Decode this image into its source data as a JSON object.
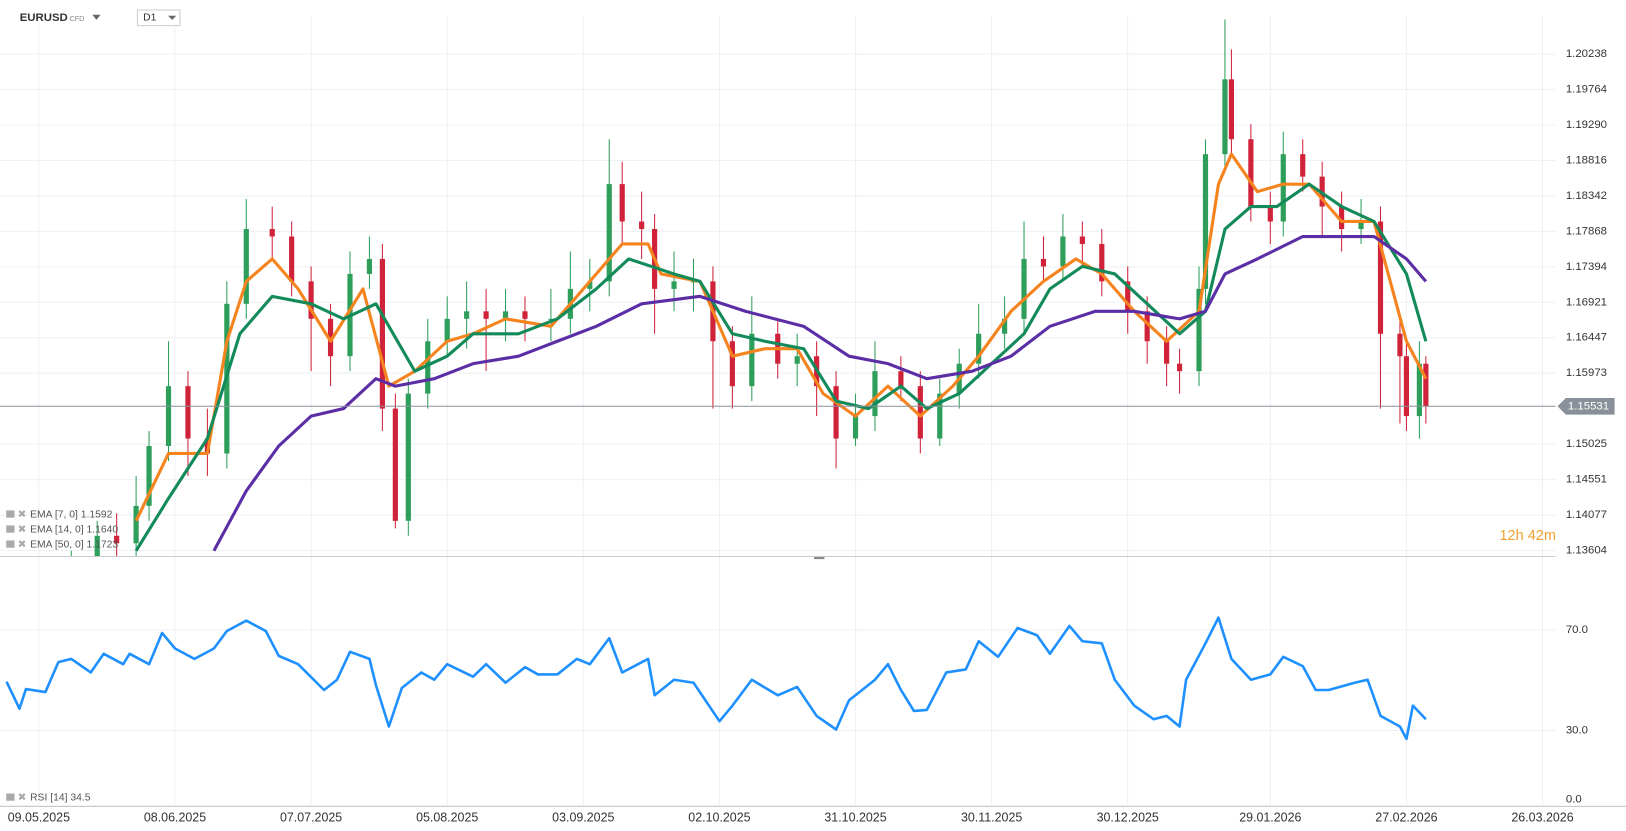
{
  "header": {
    "symbol": "EURUSD",
    "market": "CFD",
    "timeframe": "D1"
  },
  "chart_data": [
    {
      "type": "candlestick",
      "up_color": "#2e9e5b",
      "down_color": "#d0233a",
      "grid": true,
      "xlim": [
        -6,
        234
      ],
      "ylim": [
        1.1353,
        1.2075
      ],
      "yticks": [
        1.20238,
        1.19764,
        {
          "value": 1.1929,
          "label": "1.19290"
        },
        1.18816,
        1.18342,
        1.17868,
        1.17394,
        1.16921,
        1.16447,
        1.15973,
        1.15025,
        1.14551,
        1.14077,
        1.13604
      ],
      "current_price": 1.15531,
      "countdown": "12h 42m",
      "x": [
        5,
        9,
        12,
        15,
        17,
        20,
        23,
        26,
        29,
        32,
        36,
        39,
        42,
        45,
        48,
        51,
        53,
        55,
        57,
        60,
        63,
        66,
        69,
        72,
        75,
        79,
        82,
        85,
        88,
        90,
        93,
        95,
        98,
        101,
        104,
        107,
        110,
        114,
        117,
        120,
        123,
        126,
        129,
        133,
        136,
        139,
        142,
        145,
        149,
        152,
        155,
        158,
        161,
        164,
        168,
        171,
        174,
        176,
        179,
        180,
        183,
        184,
        187,
        190,
        192,
        195,
        198,
        201,
        204,
        207,
        210,
        211,
        213,
        214
      ],
      "open": [
        1.131,
        1.134,
        1.138,
        1.137,
        1.142,
        1.15,
        1.158,
        1.151,
        1.149,
        1.169,
        1.179,
        1.178,
        1.172,
        1.167,
        1.162,
        1.173,
        1.175,
        1.155,
        1.14,
        1.157,
        1.164,
        1.167,
        1.168,
        1.167,
        1.168,
        1.167,
        1.167,
        1.171,
        1.172,
        1.185,
        1.18,
        1.179,
        1.171,
        1.172,
        1.172,
        1.164,
        1.158,
        1.165,
        1.161,
        1.162,
        1.158,
        1.151,
        1.154,
        1.16,
        1.158,
        1.151,
        1.157,
        1.161,
        1.165,
        1.167,
        1.175,
        1.174,
        1.178,
        1.177,
        1.172,
        1.168,
        1.164,
        1.161,
        1.16,
        1.171,
        1.189,
        1.199,
        1.191,
        1.182,
        1.18,
        1.189,
        1.186,
        1.182,
        1.179,
        1.18,
        1.165,
        1.162,
        1.154,
        1.161
      ],
      "high": [
        1.136,
        1.14,
        1.141,
        1.146,
        1.152,
        1.164,
        1.16,
        1.155,
        1.172,
        1.183,
        1.182,
        1.18,
        1.174,
        1.169,
        1.176,
        1.178,
        1.177,
        1.157,
        1.159,
        1.167,
        1.17,
        1.172,
        1.171,
        1.171,
        1.17,
        1.171,
        1.176,
        1.175,
        1.191,
        1.188,
        1.184,
        1.181,
        1.176,
        1.175,
        1.174,
        1.166,
        1.17,
        1.167,
        1.165,
        1.164,
        1.16,
        1.157,
        1.164,
        1.162,
        1.16,
        1.159,
        1.163,
        1.169,
        1.17,
        1.18,
        1.178,
        1.181,
        1.18,
        1.179,
        1.174,
        1.17,
        1.166,
        1.163,
        1.174,
        1.191,
        1.207,
        1.203,
        1.193,
        1.184,
        1.192,
        1.191,
        1.188,
        1.184,
        1.183,
        1.182,
        1.167,
        1.164,
        1.164,
        1.162
      ],
      "low": [
        1.129,
        1.132,
        1.135,
        1.135,
        1.14,
        1.148,
        1.146,
        1.146,
        1.147,
        1.167,
        1.175,
        1.17,
        1.16,
        1.158,
        1.16,
        1.171,
        1.152,
        1.139,
        1.138,
        1.155,
        1.162,
        1.163,
        1.16,
        1.164,
        1.164,
        1.164,
        1.165,
        1.168,
        1.17,
        1.177,
        1.175,
        1.165,
        1.168,
        1.168,
        1.155,
        1.155,
        1.156,
        1.159,
        1.158,
        1.154,
        1.147,
        1.15,
        1.152,
        1.156,
        1.149,
        1.15,
        1.155,
        1.159,
        1.163,
        1.165,
        1.172,
        1.172,
        1.174,
        1.17,
        1.165,
        1.161,
        1.158,
        1.157,
        1.158,
        1.169,
        1.187,
        1.189,
        1.18,
        1.177,
        1.178,
        1.184,
        1.178,
        1.176,
        1.177,
        1.155,
        1.153,
        1.152,
        1.151,
        1.153
      ],
      "close": [
        1.134,
        1.138,
        1.137,
        1.142,
        1.15,
        1.158,
        1.151,
        1.149,
        1.169,
        1.179,
        1.178,
        1.172,
        1.167,
        1.162,
        1.173,
        1.175,
        1.155,
        1.14,
        1.157,
        1.164,
        1.167,
        1.168,
        1.167,
        1.168,
        1.167,
        1.167,
        1.171,
        1.172,
        1.185,
        1.18,
        1.179,
        1.171,
        1.172,
        1.172,
        1.164,
        1.158,
        1.165,
        1.161,
        1.162,
        1.158,
        1.151,
        1.154,
        1.16,
        1.158,
        1.151,
        1.157,
        1.161,
        1.165,
        1.167,
        1.175,
        1.174,
        1.178,
        1.177,
        1.172,
        1.168,
        1.164,
        1.161,
        1.16,
        1.171,
        1.189,
        1.199,
        1.191,
        1.182,
        1.18,
        1.189,
        1.186,
        1.182,
        1.179,
        1.18,
        1.165,
        1.162,
        1.154,
        1.161,
        1.1553
      ],
      "overlays": [
        {
          "name": "EMA [7, 0] 1.1592",
          "color": "#f5841f",
          "x": [
            15,
            20,
            26,
            29,
            32,
            36,
            40,
            45,
            50,
            54,
            58,
            63,
            67,
            72,
            79,
            83,
            90,
            94,
            96,
            102,
            107,
            112,
            117,
            121,
            126,
            131,
            136,
            141,
            145,
            150,
            155,
            160,
            164,
            169,
            174,
            179,
            182,
            184,
            188,
            192,
            196,
            201,
            206,
            211,
            214
          ],
          "values": [
            1.14,
            1.149,
            1.149,
            1.164,
            1.172,
            1.175,
            1.171,
            1.164,
            1.171,
            1.158,
            1.16,
            1.164,
            1.165,
            1.167,
            1.166,
            1.17,
            1.177,
            1.177,
            1.173,
            1.172,
            1.162,
            1.163,
            1.163,
            1.157,
            1.154,
            1.158,
            1.154,
            1.158,
            1.162,
            1.168,
            1.172,
            1.175,
            1.173,
            1.168,
            1.164,
            1.168,
            1.185,
            1.189,
            1.184,
            1.185,
            1.185,
            1.18,
            1.18,
            1.164,
            1.159
          ]
        },
        {
          "name": "EMA [14, 0] 1.1640",
          "color": "#138a5a",
          "x": [
            15,
            20,
            26,
            31,
            36,
            42,
            47,
            52,
            58,
            63,
            67,
            74,
            80,
            86,
            91,
            98,
            102,
            107,
            112,
            118,
            123,
            128,
            133,
            137,
            142,
            147,
            152,
            156,
            161,
            166,
            171,
            176,
            180,
            183,
            187,
            191,
            196,
            201,
            206,
            211,
            214
          ],
          "values": [
            1.136,
            1.143,
            1.151,
            1.165,
            1.17,
            1.169,
            1.167,
            1.169,
            1.16,
            1.162,
            1.165,
            1.165,
            1.167,
            1.171,
            1.175,
            1.173,
            1.172,
            1.165,
            1.164,
            1.163,
            1.156,
            1.155,
            1.158,
            1.155,
            1.157,
            1.161,
            1.165,
            1.171,
            1.174,
            1.173,
            1.169,
            1.165,
            1.168,
            1.179,
            1.182,
            1.182,
            1.185,
            1.182,
            1.18,
            1.173,
            1.164
          ]
        },
        {
          "name": "EMA [50, 0] 1.1723",
          "color": "#5b2ea6",
          "x": [
            27,
            32,
            37,
            42,
            47,
            52,
            55,
            61,
            67,
            74,
            80,
            86,
            93,
            102,
            109,
            118,
            125,
            131,
            137,
            144,
            150,
            156,
            163,
            169,
            176,
            180,
            183,
            188,
            195,
            199,
            206,
            211,
            214
          ],
          "values": [
            1.136,
            1.144,
            1.15,
            1.154,
            1.155,
            1.159,
            1.158,
            1.159,
            1.161,
            1.162,
            1.164,
            1.166,
            1.169,
            1.17,
            1.168,
            1.166,
            1.162,
            1.161,
            1.159,
            1.16,
            1.162,
            1.166,
            1.168,
            1.168,
            1.167,
            1.168,
            1.173,
            1.175,
            1.178,
            1.178,
            1.178,
            1.175,
            1.172
          ]
        }
      ]
    },
    {
      "type": "line",
      "xlim": [
        -6,
        234
      ],
      "ylim": [
        0,
        99
      ],
      "yticks": [
        {
          "value": 70,
          "label": "70.0"
        },
        {
          "value": 30,
          "label": "30.0"
        },
        {
          "value": 0,
          "label": "0.0"
        }
      ],
      "xticks": [
        {
          "value": 0,
          "label": "09.05.2025"
        },
        {
          "value": 21,
          "label": "08.06.2025"
        },
        {
          "value": 42,
          "label": "07.07.2025"
        },
        {
          "value": 63,
          "label": "05.08.2025"
        },
        {
          "value": 84,
          "label": "03.09.2025"
        },
        {
          "value": 105,
          "label": "02.10.2025"
        },
        {
          "value": 126,
          "label": "31.10.2025"
        },
        {
          "value": 147,
          "label": "30.11.2025"
        },
        {
          "value": 168,
          "label": "30.12.2025"
        },
        {
          "value": 190,
          "label": "29.01.2026"
        },
        {
          "value": 211,
          "label": "27.02.2026"
        },
        {
          "value": 232,
          "label": "26.03.2026"
        }
      ],
      "series": [
        {
          "name": "RSI [14] 34.5",
          "color": "#1e90ff",
          "x": [
            -5,
            -3,
            -2,
            1,
            3,
            5,
            8,
            10,
            13,
            14,
            17,
            19,
            21,
            24,
            27,
            29,
            32,
            35,
            37,
            40,
            44,
            46,
            48,
            51,
            52,
            54,
            56,
            59,
            61,
            63,
            67,
            69,
            72,
            75,
            77,
            80,
            83,
            85,
            88,
            90,
            94,
            95,
            98,
            101,
            105,
            107,
            110,
            114,
            117,
            120,
            123,
            125,
            129,
            131,
            133,
            135,
            137,
            140,
            143,
            145,
            148,
            151,
            154,
            156,
            159,
            161,
            164,
            166,
            169,
            172,
            174,
            176,
            177,
            180,
            182,
            184,
            187,
            190,
            192,
            195,
            197,
            199,
            203,
            205,
            207,
            210,
            211,
            212,
            214
          ],
          "values": [
            49.4,
            38.7,
            46.5,
            45.3,
            57.2,
            58.5,
            53.1,
            60.5,
            56.4,
            60.5,
            56.4,
            68.8,
            62.6,
            58.5,
            62.6,
            69.6,
            73.7,
            69.6,
            59.7,
            56.4,
            46.1,
            50.2,
            61.3,
            58.5,
            48.1,
            31.6,
            46.9,
            53.1,
            50.2,
            56.4,
            51.4,
            56.4,
            49.0,
            55.2,
            52.3,
            52.3,
            58.5,
            56.4,
            66.7,
            53.1,
            58.5,
            44.0,
            50.2,
            49.0,
            33.7,
            39.9,
            50.2,
            44.0,
            47.3,
            35.8,
            30.4,
            42.0,
            50.2,
            56.4,
            46.1,
            37.8,
            38.2,
            53.1,
            54.3,
            65.5,
            59.3,
            70.8,
            67.9,
            60.5,
            71.6,
            65.5,
            64.7,
            50.2,
            39.9,
            34.5,
            35.8,
            31.6,
            50.2,
            64.7,
            74.9,
            58.5,
            50.2,
            52.3,
            59.3,
            55.6,
            46.1,
            46.1,
            49.0,
            50.2,
            35.8,
            31.6,
            26.7,
            39.9,
            34.5
          ]
        }
      ]
    }
  ]
}
